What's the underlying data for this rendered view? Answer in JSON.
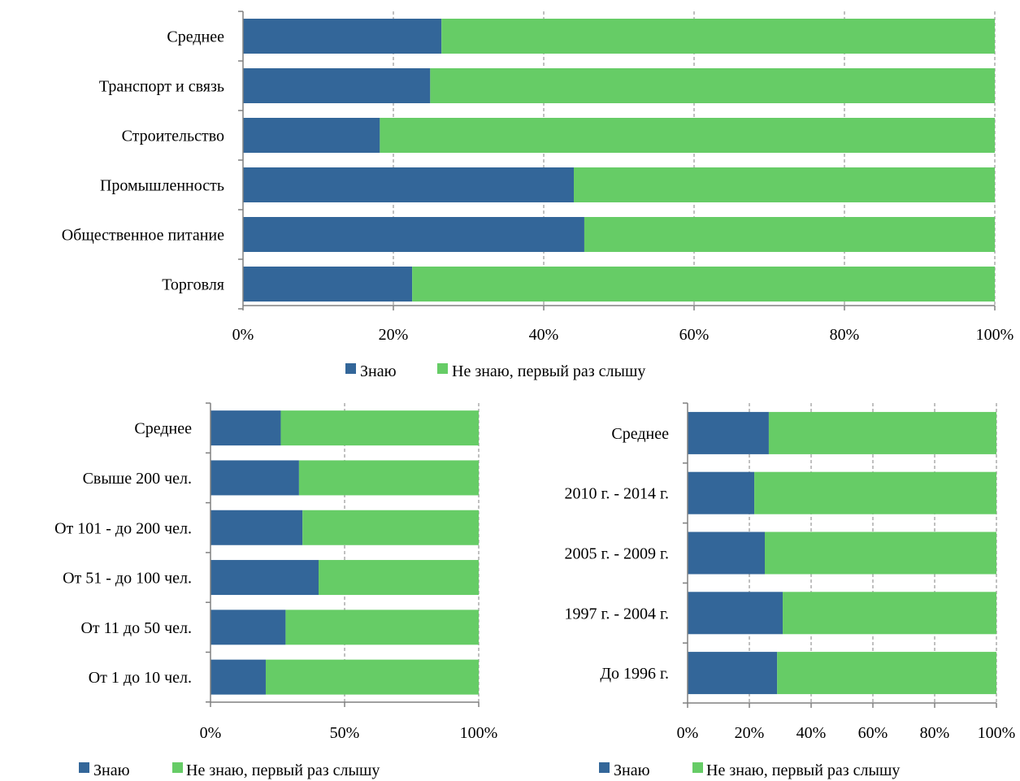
{
  "colors": {
    "know": "#336699",
    "dont_know": "#66cc66",
    "axis": "#808080",
    "grid": "#808080"
  },
  "chart_data": [
    {
      "type": "bar",
      "orientation": "horizontal",
      "stacked": "percent",
      "categories": [
        "Среднее",
        "Транспорт и связь",
        "Строительство",
        "Промышленность",
        "Общественное питание",
        "Торговля"
      ],
      "series": [
        {
          "name": "Знаю",
          "values": [
            26.4,
            24.9,
            18.2,
            44.0,
            45.4,
            22.5
          ]
        },
        {
          "name": "Не знаю, первый раз слышу",
          "values": [
            73.6,
            75.1,
            81.8,
            56.0,
            54.6,
            77.5
          ]
        }
      ],
      "xlim": [
        0,
        100
      ],
      "xticks": [
        "0%",
        "20%",
        "40%",
        "60%",
        "80%",
        "100%"
      ],
      "grid": true,
      "legend": "bottom"
    },
    {
      "type": "bar",
      "orientation": "horizontal",
      "stacked": "percent",
      "categories": [
        "Среднее",
        "Свыше 200 чел.",
        "От 101 - до 200 чел.",
        "От 51 - до 100 чел.",
        "От 11 до 50 чел.",
        "От 1 до 10 чел."
      ],
      "series": [
        {
          "name": "Знаю",
          "values": [
            26.2,
            33.0,
            34.3,
            40.3,
            28.0,
            20.6
          ]
        },
        {
          "name": "Не знаю, первый раз слышу",
          "values": [
            73.8,
            67.0,
            65.7,
            59.7,
            72.0,
            79.4
          ]
        }
      ],
      "xlim": [
        0,
        100
      ],
      "xticks": [
        "0%",
        "50%",
        "100%"
      ],
      "grid": true,
      "legend": "bottom"
    },
    {
      "type": "bar",
      "orientation": "horizontal",
      "stacked": "percent",
      "categories": [
        "Среднее",
        "2010 г. - 2014 г.",
        "2005 г. - 2009 г.",
        "1997 г. - 2004 г.",
        "До 1996 г."
      ],
      "series": [
        {
          "name": "Знаю",
          "values": [
            26.3,
            21.6,
            25.0,
            30.8,
            29.0
          ]
        },
        {
          "name": "Не знаю, первый раз слышу",
          "values": [
            73.7,
            78.4,
            75.0,
            69.2,
            71.0
          ]
        }
      ],
      "xlim": [
        0,
        100
      ],
      "xticks": [
        "0%",
        "20%",
        "40%",
        "60%",
        "80%",
        "100%"
      ],
      "grid": true,
      "legend": "bottom"
    }
  ]
}
